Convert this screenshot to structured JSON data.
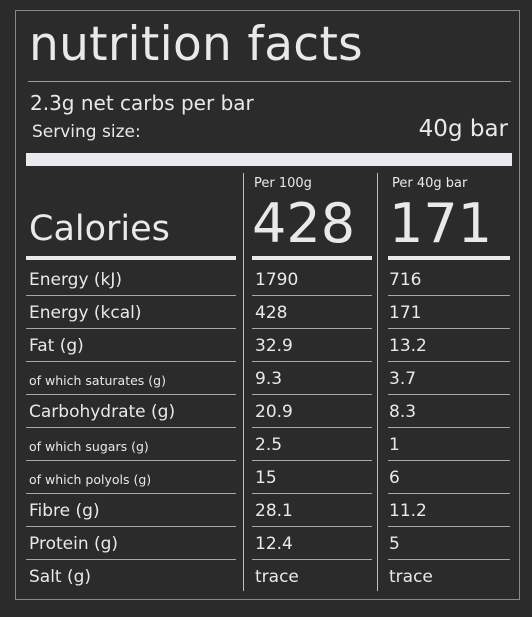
{
  "title": "nutrition facts",
  "net_carbs": "2.3g net carbs per bar",
  "serving_label": "Serving size:",
  "serving_value": "40g bar",
  "calories_label": "Calories",
  "columns": [
    {
      "header": "Per 100g",
      "calories": "428"
    },
    {
      "header": "Per 40g bar",
      "calories": "171"
    }
  ],
  "rows": [
    {
      "label": "Energy (kJ)",
      "per100": "1790",
      "perbar": "716",
      "small": false
    },
    {
      "label": "Energy (kcal)",
      "per100": "428",
      "perbar": "171",
      "small": false
    },
    {
      "label": "Fat (g)",
      "per100": "32.9",
      "perbar": "13.2",
      "small": false
    },
    {
      "label": "of which saturates (g)",
      "per100": "9.3",
      "perbar": "3.7",
      "small": true
    },
    {
      "label": "Carbohydrate (g)",
      "per100": "20.9",
      "perbar": "8.3",
      "small": false
    },
    {
      "label": "of which sugars (g)",
      "per100": "2.5",
      "perbar": "1",
      "small": true
    },
    {
      "label": "of which polyols (g)",
      "per100": "15",
      "perbar": "6",
      "small": true
    },
    {
      "label": "Fibre (g)",
      "per100": "28.1",
      "perbar": "11.2",
      "small": false
    },
    {
      "label": "Protein (g)",
      "per100": "12.4",
      "perbar": "5",
      "small": false
    },
    {
      "label": "Salt (g)",
      "per100": "trace",
      "perbar": "trace",
      "small": false
    }
  ],
  "colors": {
    "background": "#2b2b2b",
    "text": "#e9e9ec",
    "rule": "#a8a8a8"
  }
}
